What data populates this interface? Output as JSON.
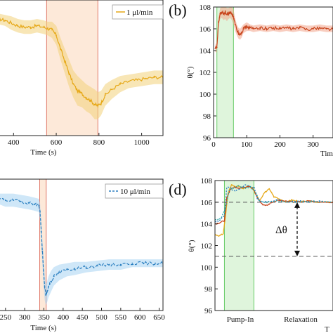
{
  "panels": [
    {
      "id": "a",
      "type": "line",
      "series": [
        {
          "name": "1 μl/min",
          "color": "#e6a817",
          "band": "#f3d27a",
          "style": "solid"
        }
      ],
      "xticks": [
        400,
        600,
        800,
        1000
      ],
      "xlim": [
        330,
        1100
      ],
      "ylim": [
        0,
        1
      ],
      "xlabel": "Time (s)",
      "highlight": {
        "x": [
          555,
          795
        ],
        "fill": "#fde9d9",
        "edge": "#e07a6a"
      },
      "mean_points": [
        [
          330,
          0.86
        ],
        [
          360,
          0.85
        ],
        [
          390,
          0.83
        ],
        [
          420,
          0.81
        ],
        [
          450,
          0.8
        ],
        [
          480,
          0.8
        ],
        [
          510,
          0.81
        ],
        [
          540,
          0.8
        ],
        [
          560,
          0.79
        ],
        [
          580,
          0.78
        ],
        [
          600,
          0.74
        ],
        [
          620,
          0.64
        ],
        [
          640,
          0.55
        ],
        [
          660,
          0.46
        ],
        [
          680,
          0.38
        ],
        [
          700,
          0.33
        ],
        [
          720,
          0.31
        ],
        [
          740,
          0.28
        ],
        [
          760,
          0.26
        ],
        [
          780,
          0.23
        ],
        [
          795,
          0.22
        ],
        [
          810,
          0.24
        ],
        [
          830,
          0.3
        ],
        [
          860,
          0.34
        ],
        [
          900,
          0.38
        ],
        [
          940,
          0.4
        ],
        [
          980,
          0.41
        ],
        [
          1020,
          0.42
        ],
        [
          1060,
          0.43
        ],
        [
          1100,
          0.43
        ]
      ],
      "band_width": [
        0.04,
        0.04,
        0.05,
        0.05,
        0.05,
        0.05,
        0.05,
        0.05,
        0.05,
        0.06,
        0.07,
        0.08,
        0.09,
        0.1,
        0.1,
        0.11,
        0.1,
        0.1,
        0.1,
        0.11,
        0.1,
        0.09,
        0.08,
        0.07,
        0.06,
        0.05,
        0.05,
        0.05,
        0.05,
        0.05
      ]
    },
    {
      "id": "b",
      "label": "(b)",
      "type": "line",
      "series": [
        {
          "name": "",
          "color": "#c8461e",
          "band": "#f2a48a",
          "style": "solid"
        }
      ],
      "xticks": [
        0,
        100,
        200,
        300
      ],
      "xlim": [
        0,
        360
      ],
      "yticks": [
        96,
        98,
        100,
        102,
        104,
        106,
        108
      ],
      "ylim": [
        96,
        108
      ],
      "ylabel": "θ(°)",
      "xlabel": "Tim",
      "highlight": {
        "x": [
          10,
          60
        ],
        "fill": "#dff5dc",
        "edge": "#66cc66"
      },
      "mean_points": [
        [
          5,
          104.2
        ],
        [
          10,
          104.3
        ],
        [
          15,
          106.6
        ],
        [
          20,
          107.4
        ],
        [
          25,
          107.5
        ],
        [
          30,
          107.4
        ],
        [
          35,
          107.5
        ],
        [
          40,
          107.3
        ],
        [
          45,
          107.4
        ],
        [
          50,
          107.5
        ],
        [
          55,
          107.4
        ],
        [
          60,
          107.1
        ],
        [
          65,
          106.4
        ],
        [
          70,
          105.9
        ],
        [
          75,
          105.6
        ],
        [
          80,
          105.5
        ],
        [
          85,
          105.7
        ],
        [
          90,
          106.0
        ],
        [
          100,
          106.2
        ],
        [
          110,
          106.1
        ],
        [
          120,
          106.0
        ],
        [
          140,
          106.1
        ],
        [
          160,
          106.0
        ],
        [
          180,
          106.1
        ],
        [
          200,
          106.0
        ],
        [
          220,
          106.1
        ],
        [
          240,
          106.0
        ],
        [
          260,
          106.1
        ],
        [
          280,
          106.0
        ],
        [
          300,
          106.0
        ],
        [
          320,
          106.1
        ],
        [
          340,
          106.0
        ],
        [
          360,
          106.0
        ]
      ],
      "band_width": [
        0.3,
        0.5,
        0.5,
        0.5,
        0.5,
        0.6,
        0.6,
        0.6,
        0.5,
        0.5,
        0.6,
        0.7,
        0.6,
        0.5,
        0.5,
        0.5,
        0.5,
        0.4,
        0.4,
        0.3,
        0.3,
        0.3,
        0.3,
        0.3,
        0.3,
        0.3,
        0.3,
        0.3,
        0.3,
        0.3,
        0.3,
        0.3,
        0.3
      ]
    },
    {
      "id": "c",
      "type": "line",
      "series": [
        {
          "name": "10 μl/min",
          "color": "#2a7fc0",
          "band": "#a8d4f2",
          "style": "dashed"
        }
      ],
      "xticks": [
        250,
        300,
        350,
        400,
        450,
        500,
        550,
        600,
        650
      ],
      "xlim": [
        232,
        660
      ],
      "ylim": [
        0,
        1
      ],
      "xlabel": "Time (s)",
      "highlight": {
        "x": [
          339,
          356
        ],
        "fill": "#fde9d9",
        "edge": "#e07a6a"
      },
      "mean_points": [
        [
          232,
          0.85
        ],
        [
          250,
          0.84
        ],
        [
          270,
          0.84
        ],
        [
          290,
          0.83
        ],
        [
          310,
          0.82
        ],
        [
          325,
          0.81
        ],
        [
          337,
          0.8
        ],
        [
          340,
          0.75
        ],
        [
          343,
          0.6
        ],
        [
          346,
          0.45
        ],
        [
          349,
          0.3
        ],
        [
          352,
          0.18
        ],
        [
          355,
          0.12
        ],
        [
          358,
          0.14
        ],
        [
          362,
          0.18
        ],
        [
          368,
          0.22
        ],
        [
          376,
          0.26
        ],
        [
          390,
          0.29
        ],
        [
          410,
          0.31
        ],
        [
          430,
          0.32
        ],
        [
          460,
          0.33
        ],
        [
          490,
          0.34
        ],
        [
          520,
          0.35
        ],
        [
          550,
          0.35
        ],
        [
          580,
          0.36
        ],
        [
          610,
          0.36
        ],
        [
          640,
          0.36
        ],
        [
          660,
          0.36
        ]
      ],
      "band_width": [
        0.04,
        0.05,
        0.05,
        0.05,
        0.05,
        0.05,
        0.05,
        0.07,
        0.09,
        0.1,
        0.12,
        0.1,
        0.08,
        0.08,
        0.08,
        0.08,
        0.07,
        0.06,
        0.05,
        0.05,
        0.04,
        0.04,
        0.04,
        0.04,
        0.03,
        0.03,
        0.03,
        0.03
      ]
    },
    {
      "id": "d",
      "label": "(d)",
      "type": "line",
      "yticks": [
        96,
        98,
        100,
        102,
        104,
        106,
        108
      ],
      "ylim": [
        96,
        108
      ],
      "ylabel": "θ(°)",
      "xlim": [
        0,
        100
      ],
      "highlight": {
        "x": [
          8,
          33
        ],
        "fill": "#dff5dc",
        "edge": "#66cc66"
      },
      "hlines": [
        106,
        101
      ],
      "annotation": {
        "text": "Δθ",
        "y_top": 106,
        "y_bottom": 101
      },
      "phase_labels": [
        "Pump-In",
        "Relaxation"
      ],
      "xlabel": "T",
      "series": [
        {
          "name": "",
          "color": "#e6a817",
          "style": "solid",
          "points": [
            [
              0,
              103.0
            ],
            [
              4,
              102.9
            ],
            [
              7,
              103.1
            ],
            [
              9,
              104.8
            ],
            [
              11,
              106.8
            ],
            [
              14,
              107.6
            ],
            [
              17,
              107.4
            ],
            [
              20,
              107.5
            ],
            [
              24,
              107.2
            ],
            [
              28,
              107.5
            ],
            [
              32,
              107.3
            ],
            [
              35,
              106.6
            ],
            [
              38,
              106.2
            ],
            [
              42,
              106.9
            ],
            [
              46,
              107.2
            ],
            [
              50,
              106.5
            ],
            [
              55,
              106.3
            ],
            [
              60,
              106.0
            ],
            [
              65,
              106.2
            ],
            [
              70,
              106.1
            ],
            [
              80,
              106.1
            ],
            [
              90,
              106.0
            ],
            [
              100,
              106.0
            ]
          ]
        },
        {
          "name": "",
          "color": "#c8461e",
          "style": "solid",
          "points": [
            [
              0,
              104.0
            ],
            [
              4,
              104.1
            ],
            [
              8,
              104.3
            ],
            [
              10,
              106.4
            ],
            [
              13,
              107.2
            ],
            [
              17,
              107.4
            ],
            [
              21,
              107.3
            ],
            [
              25,
              107.4
            ],
            [
              29,
              107.5
            ],
            [
              33,
              107.1
            ],
            [
              36,
              106.4
            ],
            [
              40,
              105.8
            ],
            [
              44,
              105.7
            ],
            [
              48,
              106.0
            ],
            [
              54,
              106.2
            ],
            [
              60,
              106.1
            ],
            [
              70,
              106.0
            ],
            [
              80,
              106.1
            ],
            [
              90,
              106.0
            ],
            [
              100,
              106.0
            ]
          ]
        },
        {
          "name": "",
          "color": "#2a7fc0",
          "style": "dotted",
          "points": [
            [
              0,
              104.2
            ],
            [
              4,
              104.3
            ],
            [
              8,
              104.8
            ],
            [
              10,
              107.4
            ],
            [
              13,
              107.3
            ],
            [
              17,
              107.0
            ],
            [
              21,
              107.2
            ],
            [
              25,
              107.6
            ],
            [
              29,
              107.5
            ],
            [
              33,
              107.4
            ],
            [
              36,
              106.3
            ],
            [
              40,
              106.0
            ],
            [
              46,
              106.1
            ],
            [
              54,
              106.2
            ],
            [
              60,
              106.0
            ],
            [
              70,
              106.1
            ],
            [
              80,
              106.0
            ],
            [
              90,
              106.1
            ],
            [
              100,
              106.0
            ]
          ]
        },
        {
          "name": "",
          "color": "#2aa8a8",
          "style": "dotted",
          "points": [
            [
              0,
              104.4
            ],
            [
              5,
              104.5
            ],
            [
              9,
              105.5
            ],
            [
              12,
              107.1
            ],
            [
              16,
              107.3
            ],
            [
              20,
              107.5
            ],
            [
              25,
              107.3
            ],
            [
              30,
              107.4
            ],
            [
              34,
              107.0
            ],
            [
              38,
              106.1
            ],
            [
              44,
              106.0
            ],
            [
              52,
              106.1
            ],
            [
              60,
              106.0
            ],
            [
              70,
              106.0
            ],
            [
              80,
              106.1
            ],
            [
              100,
              106.0
            ]
          ]
        }
      ]
    }
  ],
  "chart_data": [
    {
      "type": "line",
      "panel": "a",
      "xlabel": "Time (s)",
      "x": [
        330,
        360,
        390,
        420,
        450,
        480,
        510,
        540,
        560,
        580,
        600,
        620,
        640,
        660,
        680,
        700,
        720,
        740,
        760,
        780,
        795,
        810,
        830,
        860,
        900,
        940,
        980,
        1020,
        1060,
        1100
      ],
      "series": [
        {
          "name": "1 μl/min",
          "values": [
            0.86,
            0.85,
            0.83,
            0.81,
            0.8,
            0.8,
            0.81,
            0.8,
            0.79,
            0.78,
            0.74,
            0.64,
            0.55,
            0.46,
            0.38,
            0.33,
            0.31,
            0.28,
            0.26,
            0.23,
            0.22,
            0.24,
            0.3,
            0.34,
            0.38,
            0.4,
            0.41,
            0.42,
            0.43,
            0.43
          ]
        }
      ]
    },
    {
      "type": "line",
      "panel": "b",
      "ylabel": "θ(°)",
      "ylim": [
        96,
        108
      ],
      "x": [
        5,
        10,
        15,
        20,
        25,
        30,
        35,
        40,
        45,
        50,
        55,
        60,
        65,
        70,
        75,
        80,
        85,
        90,
        100,
        110,
        120,
        140,
        160,
        180,
        200,
        220,
        240,
        260,
        280,
        300,
        320,
        340,
        360
      ],
      "series": [
        {
          "values": [
            104.2,
            104.3,
            106.6,
            107.4,
            107.5,
            107.4,
            107.5,
            107.3,
            107.4,
            107.5,
            107.4,
            107.1,
            106.4,
            105.9,
            105.6,
            105.5,
            105.7,
            106.0,
            106.2,
            106.1,
            106.0,
            106.1,
            106.0,
            106.1,
            106.0,
            106.1,
            106.0,
            106.1,
            106.0,
            106.0,
            106.1,
            106.0,
            106.0
          ]
        }
      ]
    },
    {
      "type": "line",
      "panel": "c",
      "xlabel": "Time (s)",
      "x": [
        232,
        250,
        270,
        290,
        310,
        325,
        337,
        340,
        343,
        346,
        349,
        352,
        355,
        358,
        362,
        368,
        376,
        390,
        410,
        430,
        460,
        490,
        520,
        550,
        580,
        610,
        640,
        660
      ],
      "series": [
        {
          "name": "10 μl/min",
          "values": [
            0.85,
            0.84,
            0.84,
            0.83,
            0.82,
            0.81,
            0.8,
            0.75,
            0.6,
            0.45,
            0.3,
            0.18,
            0.12,
            0.14,
            0.18,
            0.22,
            0.26,
            0.29,
            0.31,
            0.32,
            0.33,
            0.34,
            0.35,
            0.35,
            0.36,
            0.36,
            0.36,
            0.36
          ]
        }
      ]
    },
    {
      "type": "line",
      "panel": "d",
      "ylabel": "θ(°)",
      "ylim": [
        96,
        108
      ],
      "annotations": [
        "Δθ",
        "Pump-In",
        "Relaxation"
      ],
      "reference_lines_y": [
        106,
        101
      ]
    }
  ]
}
